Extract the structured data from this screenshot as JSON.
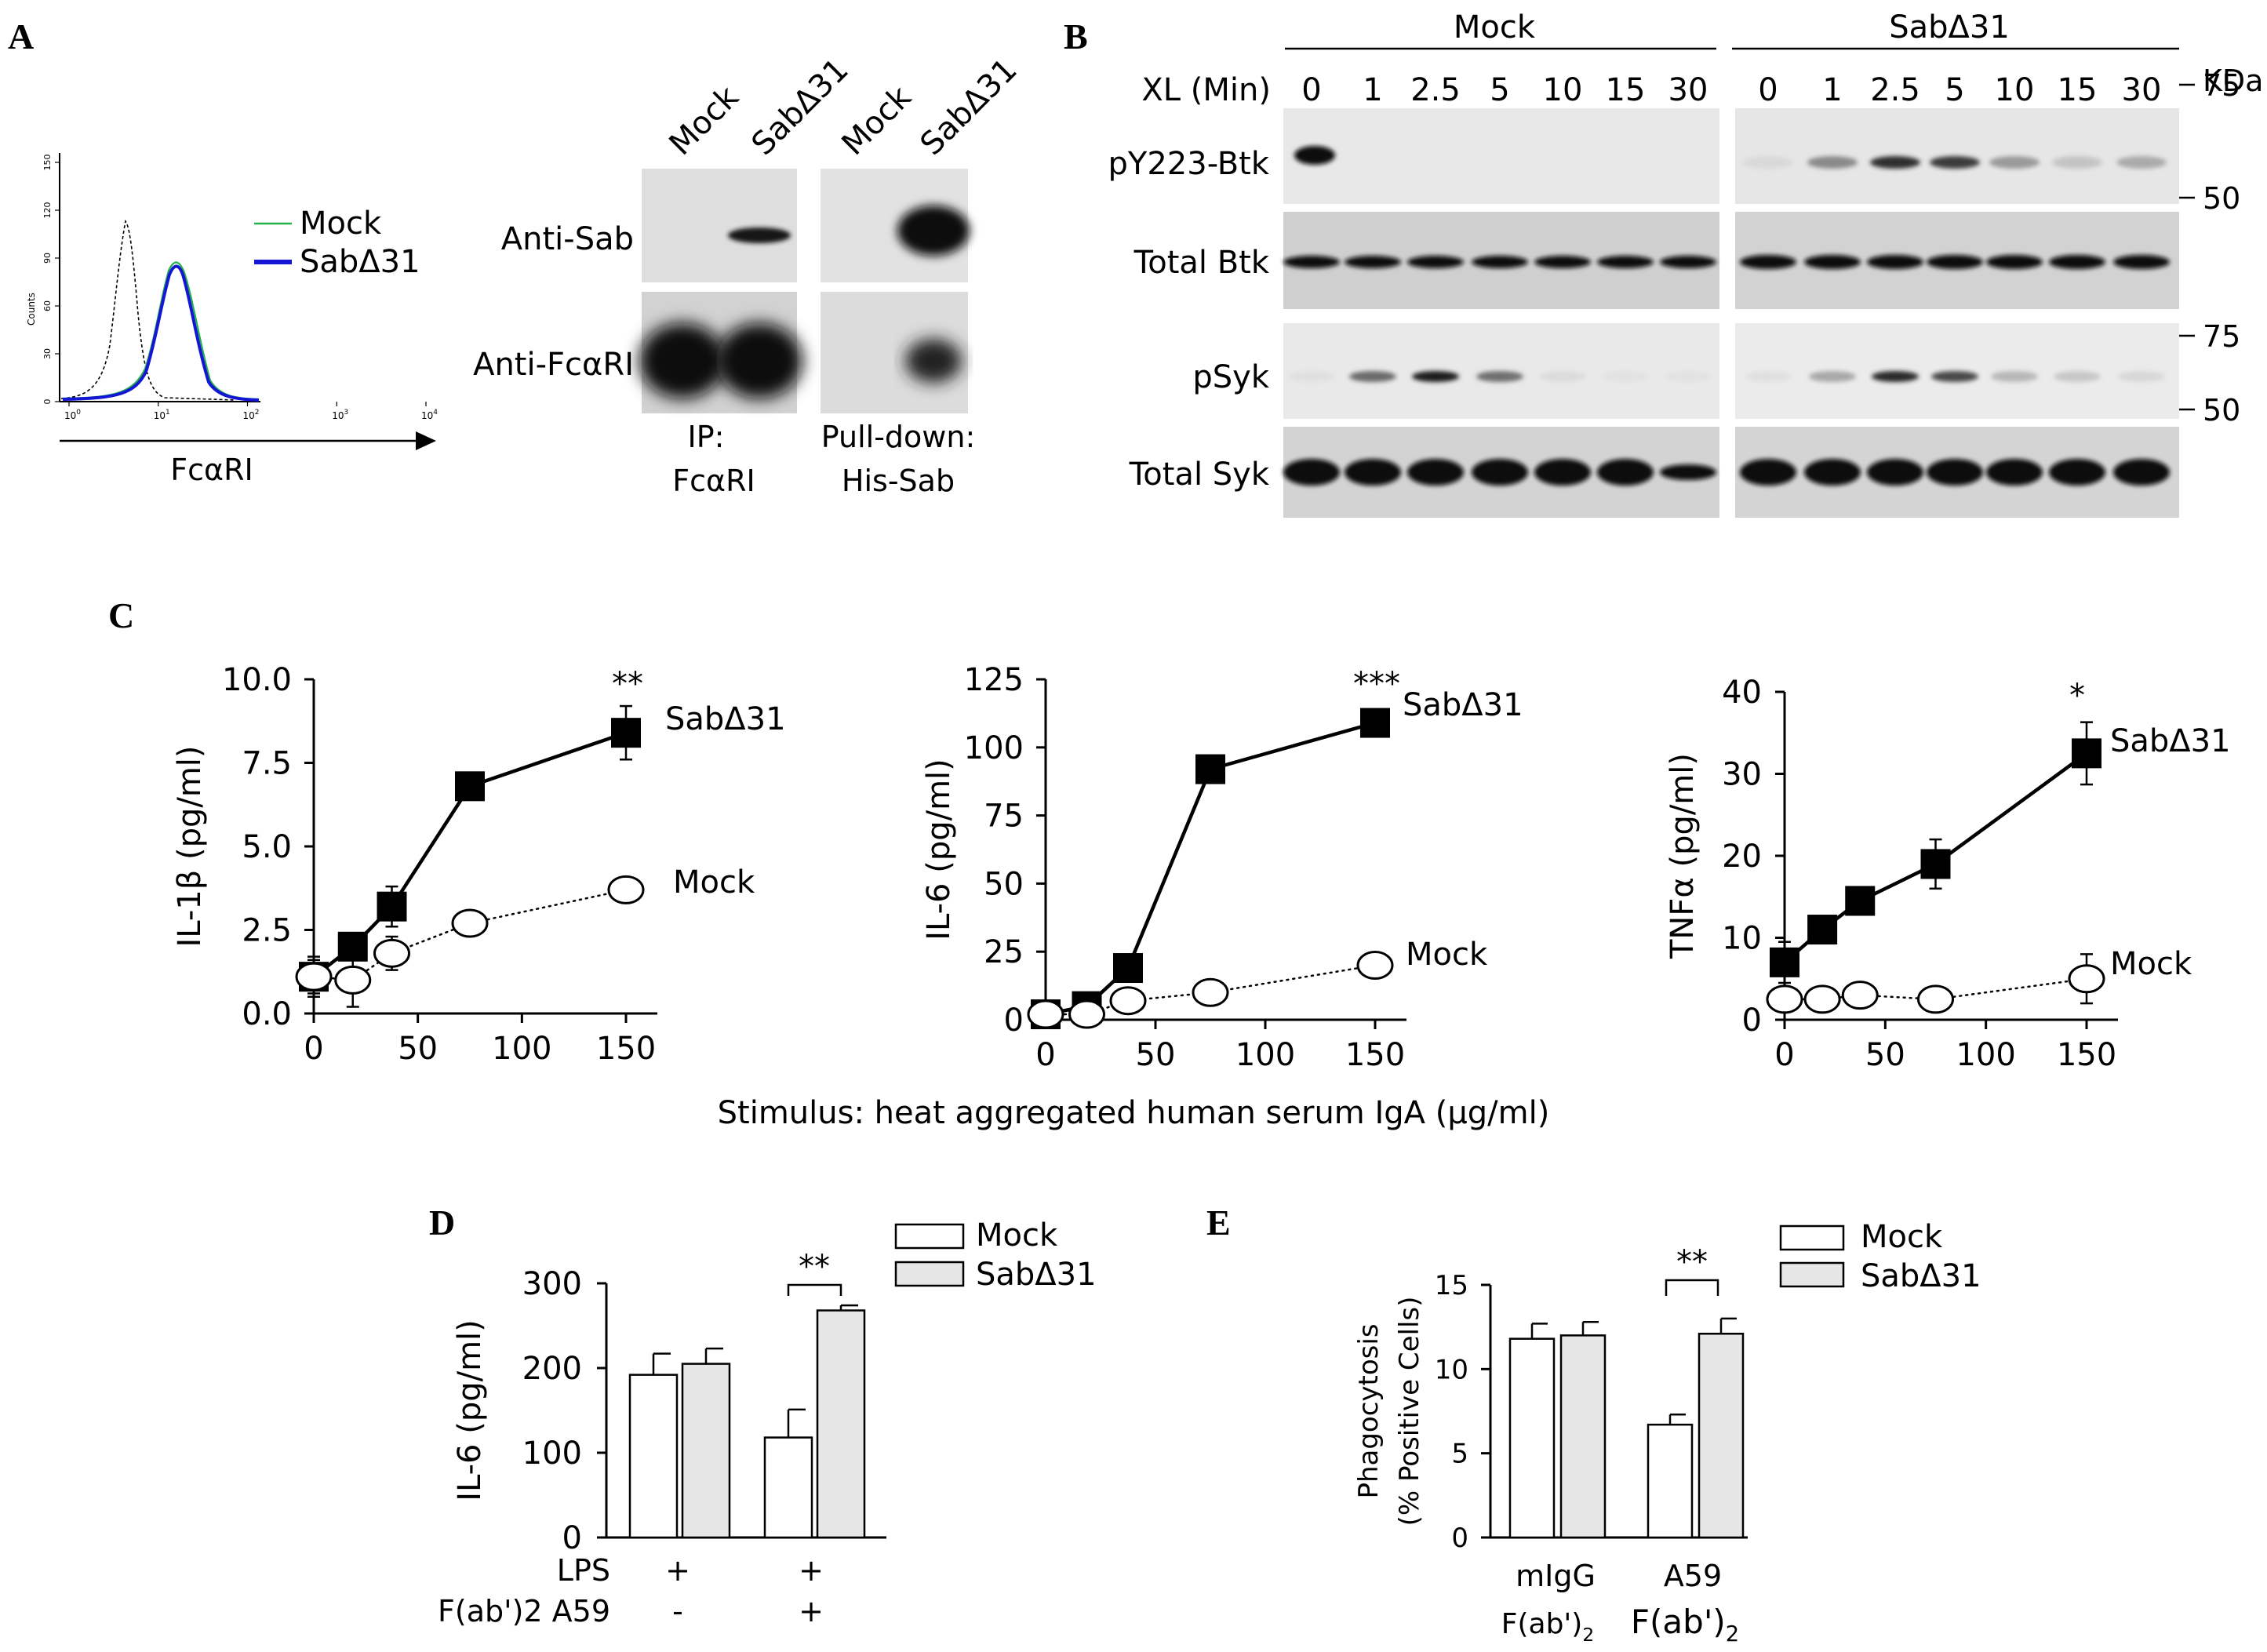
{
  "panelA": {
    "letter": "A",
    "hist": {
      "legend": [
        "Mock",
        "SabΔ31"
      ],
      "ylabel": "Counts",
      "yticks": [
        "0",
        "30",
        "60",
        "90",
        "120",
        "150"
      ],
      "xticks": [
        {
          "base": "10",
          "exp": "0"
        },
        {
          "base": "10",
          "exp": "1"
        },
        {
          "base": "10",
          "exp": "2"
        },
        {
          "base": "10",
          "exp": "3"
        },
        {
          "base": "10",
          "exp": "4"
        }
      ],
      "xlabel": "FcαRI",
      "colors": {
        "mock": "#22b14c",
        "sab": "#1515d6",
        "ctrl": "#000000"
      }
    },
    "blot": {
      "lanes": [
        "Mock",
        "SabΔ31",
        "Mock",
        "SabΔ31"
      ],
      "rows": [
        "Anti-Sab",
        "Anti-FcαRI"
      ],
      "foot_left": [
        "IP:",
        "FcαRI"
      ],
      "foot_right": [
        "Pull-down:",
        "His-Sab"
      ]
    }
  },
  "panelB": {
    "letter": "B",
    "groups": [
      "Mock",
      "SabΔ31"
    ],
    "xl_label": "XL (Min)",
    "times": [
      "0",
      "1",
      "2.5",
      "5",
      "10",
      "15",
      "30"
    ],
    "kda": "KDa",
    "rows": [
      "pY223-Btk",
      "Total Btk",
      "pSyk",
      "Total Syk"
    ],
    "markers": [
      {
        "label": "75",
        "row": 0
      },
      {
        "label": "50",
        "row": 0
      },
      {
        "label": "75",
        "row": 2
      },
      {
        "label": "50",
        "row": 2
      }
    ]
  },
  "panelC": {
    "letter": "C",
    "shared_xlabel": "Stimulus: heat aggregated human serum IgA (μg/ml)",
    "chart_data": [
      {
        "type": "line",
        "ylabel": "IL-1β (pg/ml)",
        "ylim": [
          0,
          10
        ],
        "yticks": [
          "0.0",
          "2.5",
          "5.0",
          "7.5",
          "10.0"
        ],
        "xlim": [
          0,
          150
        ],
        "xticks": [
          "0",
          "50",
          "100",
          "150"
        ],
        "x": [
          0,
          18.75,
          37.5,
          75,
          150
        ],
        "series": [
          {
            "name": "SabΔ31",
            "values": [
              1.1,
              2.0,
              3.2,
              6.8,
              8.4
            ],
            "errors": [
              0.6,
              0.4,
              0.6,
              0.15,
              0.8
            ],
            "marker": "square",
            "style": "solid"
          },
          {
            "name": "Mock",
            "values": [
              1.1,
              1.0,
              1.8,
              2.7,
              3.7
            ],
            "errors": [
              0.5,
              0.8,
              0.5,
              0.2,
              0.3
            ],
            "marker": "circle",
            "style": "dotted"
          }
        ],
        "annotation": "**"
      },
      {
        "type": "line",
        "ylabel": "IL-6 (pg/ml)",
        "ylim": [
          0,
          125
        ],
        "yticks": [
          "0",
          "25",
          "50",
          "75",
          "100",
          "125"
        ],
        "xlim": [
          0,
          150
        ],
        "xticks": [
          "0",
          "50",
          "100",
          "150"
        ],
        "x": [
          0,
          18.75,
          37.5,
          75,
          150
        ],
        "series": [
          {
            "name": "SabΔ31",
            "values": [
              2,
              5,
              19,
              92,
              109
            ],
            "errors": [
              1,
              1,
              2,
              3,
              2
            ],
            "marker": "square",
            "style": "solid"
          },
          {
            "name": "Mock",
            "values": [
              2,
              2,
              7,
              10,
              20
            ],
            "errors": [
              1,
              1,
              1,
              1,
              1
            ],
            "marker": "circle",
            "style": "dotted"
          }
        ],
        "annotation": "***"
      },
      {
        "type": "line",
        "ylabel": "TNFα (pg/ml)",
        "ylim": [
          0,
          40
        ],
        "yticks": [
          "0",
          "10",
          "20",
          "30",
          "40"
        ],
        "xlim": [
          0,
          150
        ],
        "xticks": [
          "0",
          "50",
          "100",
          "150"
        ],
        "x": [
          0,
          18.75,
          37.5,
          75,
          150
        ],
        "series": [
          {
            "name": "SabΔ31",
            "values": [
              7,
              11,
              14.5,
              19,
              32.5
            ],
            "errors": [
              2.5,
              1.5,
              1.5,
              3,
              3.8
            ],
            "marker": "square",
            "style": "solid"
          },
          {
            "name": "Mock",
            "values": [
              2.5,
              2.5,
              3.0,
              2.5,
              5
            ],
            "errors": [
              1.5,
              1.5,
              1.5,
              1,
              3
            ],
            "marker": "circle",
            "style": "dotted"
          }
        ],
        "annotation": "*"
      }
    ]
  },
  "panelD": {
    "letter": "D",
    "chart_data": {
      "type": "bar",
      "ylabel": "IL-6 (pg/ml)",
      "ylim": [
        0,
        300
      ],
      "yticks": [
        "0",
        "100",
        "200",
        "300"
      ],
      "categories": [
        "LPS + / F(ab')2 A59 -",
        "LPS + / F(ab')2 A59 +"
      ],
      "series": [
        {
          "name": "Mock",
          "values": [
            192,
            118
          ],
          "errors": [
            25,
            33
          ],
          "color": "#ffffff"
        },
        {
          "name": "SabΔ31",
          "values": [
            205,
            268
          ],
          "errors": [
            18,
            6
          ],
          "color": "#e6e6e6"
        }
      ],
      "annotation": "**",
      "row_labels": [
        "LPS",
        "F(ab')2 A59"
      ],
      "row_values": [
        [
          "+",
          "+"
        ],
        [
          "-",
          "+"
        ]
      ]
    }
  },
  "panelE": {
    "letter": "E",
    "chart_data": {
      "type": "bar",
      "ylabel_lines": [
        "Phagocytosis",
        "(% Positive Cells)"
      ],
      "ylim": [
        0,
        15
      ],
      "yticks": [
        "0",
        "5",
        "10",
        "15"
      ],
      "categories": [
        {
          "line1": "mIgG",
          "line2": "F(ab')",
          "sub": "2"
        },
        {
          "line1": "A59",
          "line2": "F(ab')",
          "sub": "2"
        }
      ],
      "series": [
        {
          "name": "Mock",
          "values": [
            11.8,
            6.7
          ],
          "errors": [
            0.9,
            0.6
          ],
          "color": "#ffffff"
        },
        {
          "name": "SabΔ31",
          "values": [
            12.0,
            12.1
          ],
          "errors": [
            0.8,
            0.9
          ],
          "color": "#e6e6e6"
        }
      ],
      "annotation": "**"
    }
  }
}
